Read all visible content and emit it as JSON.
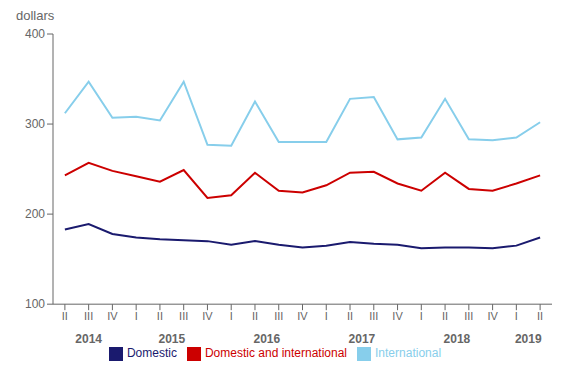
{
  "chart_data": {
    "type": "line",
    "ylabel": "dollars",
    "categories": [
      "II",
      "III",
      "IV",
      "I",
      "II",
      "III",
      "IV",
      "I",
      "II",
      "III",
      "IV",
      "I",
      "II",
      "III",
      "IV",
      "I",
      "II",
      "III",
      "IV",
      "I",
      "II"
    ],
    "annotations": [
      "2014",
      "2015",
      "2016",
      "2017",
      "2018",
      "2019"
    ],
    "series": [
      {
        "name": "Domestic",
        "color": "#1a1a6e",
        "values": [
          183,
          189,
          178,
          174,
          172,
          171,
          170,
          166,
          170,
          166,
          163,
          165,
          169,
          167,
          166,
          162,
          163,
          163,
          162,
          165,
          174
        ]
      },
      {
        "name": "International",
        "color": "#87ceeb",
        "values": [
          312,
          347,
          307,
          308,
          304,
          347,
          277,
          276,
          325,
          280,
          280,
          280,
          328,
          330,
          283,
          285,
          328,
          283,
          282,
          285,
          302
        ]
      },
      {
        "name": "Domestic and international",
        "color": "#cc0000",
        "values": [
          243,
          257,
          248,
          242,
          236,
          249,
          218,
          221,
          246,
          226,
          224,
          232,
          246,
          247,
          234,
          226,
          246,
          228,
          226,
          234,
          243
        ]
      }
    ],
    "ylim": [
      100,
      400
    ],
    "yticks": [
      100,
      200,
      300,
      400
    ],
    "grid": false,
    "legend": "bottom"
  }
}
